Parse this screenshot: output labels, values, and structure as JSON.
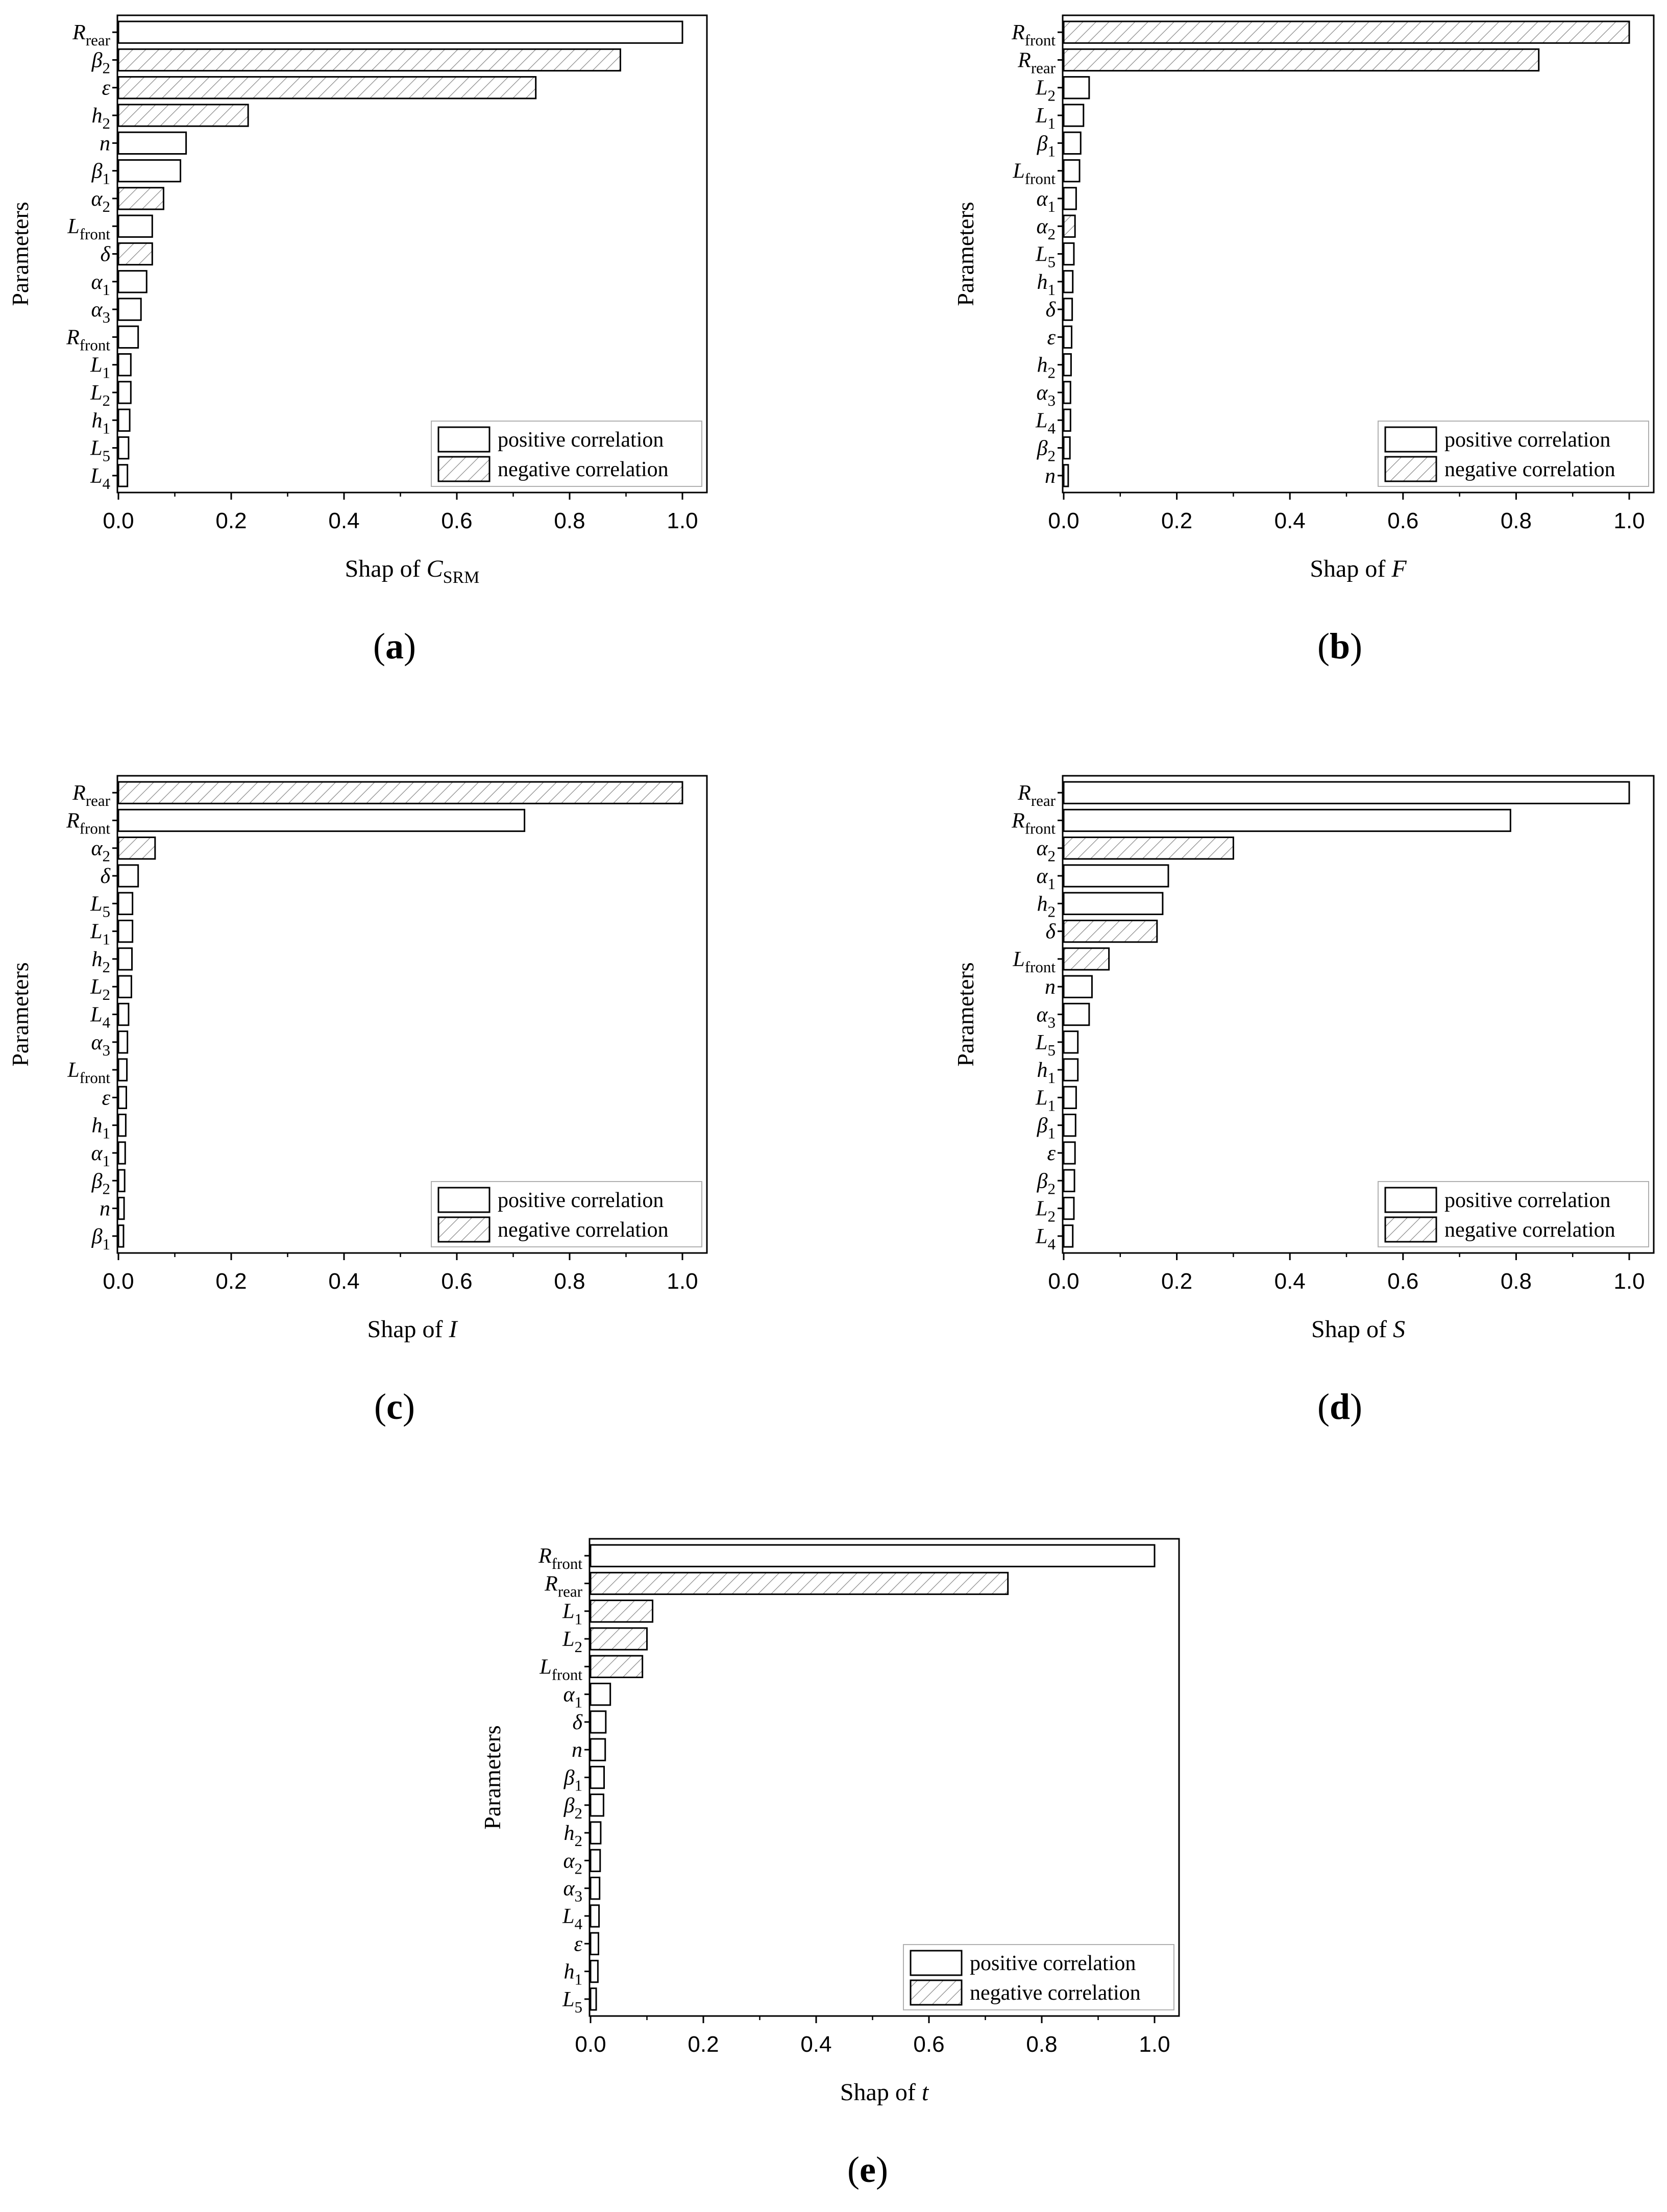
{
  "figure": {
    "legend": {
      "positive": "positive correlation",
      "negative": "negative correlation"
    },
    "yaxis_label": "Parameters",
    "xaxis_label_prefix": "Shap of ",
    "ticks": [
      "0.0",
      "0.2",
      "0.4",
      "0.6",
      "0.8",
      "1.0"
    ]
  },
  "chart_data": [
    {
      "type": "bar",
      "panel_label": "(a)",
      "xlabel_var": "C",
      "xlabel_sub": "SRM",
      "ylabel": "Parameters",
      "xlim": [
        0,
        1.0
      ],
      "legend_position": "bottom-right",
      "bars": [
        {
          "main": "R",
          "sub": "rear",
          "value": 1.0,
          "sign": "positive"
        },
        {
          "main": "β",
          "sub": "2",
          "value": 0.89,
          "sign": "negative"
        },
        {
          "main": "ε",
          "sub": "",
          "value": 0.74,
          "sign": "negative"
        },
        {
          "main": "h",
          "sub": "2",
          "value": 0.23,
          "sign": "negative"
        },
        {
          "main": "n",
          "sub": "",
          "value": 0.12,
          "sign": "positive"
        },
        {
          "main": "β",
          "sub": "1",
          "value": 0.11,
          "sign": "positive"
        },
        {
          "main": "α",
          "sub": "2",
          "value": 0.08,
          "sign": "negative"
        },
        {
          "main": "L",
          "sub": "front",
          "value": 0.06,
          "sign": "positive"
        },
        {
          "main": "δ",
          "sub": "",
          "value": 0.06,
          "sign": "negative"
        },
        {
          "main": "α",
          "sub": "1",
          "value": 0.05,
          "sign": "positive"
        },
        {
          "main": "α",
          "sub": "3",
          "value": 0.04,
          "sign": "positive"
        },
        {
          "main": "R",
          "sub": "front",
          "value": 0.035,
          "sign": "positive"
        },
        {
          "main": "L",
          "sub": "1",
          "value": 0.022,
          "sign": "positive"
        },
        {
          "main": "L",
          "sub": "2",
          "value": 0.022,
          "sign": "positive"
        },
        {
          "main": "h",
          "sub": "1",
          "value": 0.02,
          "sign": "positive"
        },
        {
          "main": "L",
          "sub": "5",
          "value": 0.018,
          "sign": "positive"
        },
        {
          "main": "L",
          "sub": "4",
          "value": 0.016,
          "sign": "positive"
        }
      ]
    },
    {
      "type": "bar",
      "panel_label": "(b)",
      "xlabel_var": "F",
      "xlabel_sub": "",
      "ylabel": "Parameters",
      "xlim": [
        0,
        1.0
      ],
      "legend_position": "bottom-right",
      "bars": [
        {
          "main": "R",
          "sub": "front",
          "value": 1.0,
          "sign": "negative"
        },
        {
          "main": "R",
          "sub": "rear",
          "value": 0.84,
          "sign": "negative"
        },
        {
          "main": "L",
          "sub": "2",
          "value": 0.045,
          "sign": "positive"
        },
        {
          "main": "L",
          "sub": "1",
          "value": 0.035,
          "sign": "positive"
        },
        {
          "main": "β",
          "sub": "1",
          "value": 0.03,
          "sign": "positive"
        },
        {
          "main": "L",
          "sub": "front",
          "value": 0.028,
          "sign": "positive"
        },
        {
          "main": "α",
          "sub": "1",
          "value": 0.022,
          "sign": "positive"
        },
        {
          "main": "α",
          "sub": "2",
          "value": 0.02,
          "sign": "negative"
        },
        {
          "main": "L",
          "sub": "5",
          "value": 0.018,
          "sign": "positive"
        },
        {
          "main": "h",
          "sub": "1",
          "value": 0.016,
          "sign": "positive"
        },
        {
          "main": "δ",
          "sub": "",
          "value": 0.015,
          "sign": "positive"
        },
        {
          "main": "ε",
          "sub": "",
          "value": 0.014,
          "sign": "positive"
        },
        {
          "main": "h",
          "sub": "2",
          "value": 0.013,
          "sign": "positive"
        },
        {
          "main": "α",
          "sub": "3",
          "value": 0.012,
          "sign": "positive"
        },
        {
          "main": "L",
          "sub": "4",
          "value": 0.012,
          "sign": "positive"
        },
        {
          "main": "β",
          "sub": "2",
          "value": 0.011,
          "sign": "positive"
        },
        {
          "main": "n",
          "sub": "",
          "value": 0.008,
          "sign": "positive"
        }
      ]
    },
    {
      "type": "bar",
      "panel_label": "(c)",
      "xlabel_var": "I",
      "xlabel_sub": "",
      "ylabel": "Parameters",
      "xlim": [
        0,
        1.0
      ],
      "legend_position": "bottom-right",
      "bars": [
        {
          "main": "R",
          "sub": "rear",
          "value": 1.0,
          "sign": "negative"
        },
        {
          "main": "R",
          "sub": "front",
          "value": 0.72,
          "sign": "positive"
        },
        {
          "main": "α",
          "sub": "2",
          "value": 0.065,
          "sign": "negative"
        },
        {
          "main": "δ",
          "sub": "",
          "value": 0.035,
          "sign": "positive"
        },
        {
          "main": "L",
          "sub": "5",
          "value": 0.025,
          "sign": "positive"
        },
        {
          "main": "L",
          "sub": "1",
          "value": 0.025,
          "sign": "positive"
        },
        {
          "main": "h",
          "sub": "2",
          "value": 0.024,
          "sign": "positive"
        },
        {
          "main": "L",
          "sub": "2",
          "value": 0.023,
          "sign": "positive"
        },
        {
          "main": "L",
          "sub": "4",
          "value": 0.018,
          "sign": "positive"
        },
        {
          "main": "α",
          "sub": "3",
          "value": 0.016,
          "sign": "positive"
        },
        {
          "main": "L",
          "sub": "front",
          "value": 0.015,
          "sign": "positive"
        },
        {
          "main": "ε",
          "sub": "",
          "value": 0.014,
          "sign": "positive"
        },
        {
          "main": "h",
          "sub": "1",
          "value": 0.013,
          "sign": "positive"
        },
        {
          "main": "α",
          "sub": "1",
          "value": 0.012,
          "sign": "positive"
        },
        {
          "main": "β",
          "sub": "2",
          "value": 0.011,
          "sign": "positive"
        },
        {
          "main": "n",
          "sub": "",
          "value": 0.01,
          "sign": "positive"
        },
        {
          "main": "β",
          "sub": "1",
          "value": 0.009,
          "sign": "positive"
        }
      ]
    },
    {
      "type": "bar",
      "panel_label": "(d)",
      "xlabel_var": "S",
      "xlabel_sub": "",
      "ylabel": "Parameters",
      "xlim": [
        0,
        1.0
      ],
      "legend_position": "bottom-right",
      "bars": [
        {
          "main": "R",
          "sub": "rear",
          "value": 1.0,
          "sign": "positive"
        },
        {
          "main": "R",
          "sub": "front",
          "value": 0.79,
          "sign": "positive"
        },
        {
          "main": "α",
          "sub": "2",
          "value": 0.3,
          "sign": "negative"
        },
        {
          "main": "α",
          "sub": "1",
          "value": 0.185,
          "sign": "positive"
        },
        {
          "main": "h",
          "sub": "2",
          "value": 0.175,
          "sign": "positive"
        },
        {
          "main": "δ",
          "sub": "",
          "value": 0.165,
          "sign": "negative"
        },
        {
          "main": "L",
          "sub": "front",
          "value": 0.08,
          "sign": "negative"
        },
        {
          "main": "n",
          "sub": "",
          "value": 0.05,
          "sign": "positive"
        },
        {
          "main": "α",
          "sub": "3",
          "value": 0.045,
          "sign": "positive"
        },
        {
          "main": "L",
          "sub": "5",
          "value": 0.025,
          "sign": "positive"
        },
        {
          "main": "h",
          "sub": "1",
          "value": 0.025,
          "sign": "positive"
        },
        {
          "main": "L",
          "sub": "1",
          "value": 0.022,
          "sign": "positive"
        },
        {
          "main": "β",
          "sub": "1",
          "value": 0.021,
          "sign": "positive"
        },
        {
          "main": "ε",
          "sub": "",
          "value": 0.02,
          "sign": "positive"
        },
        {
          "main": "β",
          "sub": "2",
          "value": 0.019,
          "sign": "positive"
        },
        {
          "main": "L",
          "sub": "2",
          "value": 0.018,
          "sign": "positive"
        },
        {
          "main": "L",
          "sub": "4",
          "value": 0.016,
          "sign": "positive"
        }
      ]
    },
    {
      "type": "bar",
      "panel_label": "(e)",
      "xlabel_var": "t",
      "xlabel_sub": "",
      "ylabel": "Parameters",
      "xlim": [
        0,
        1.0
      ],
      "legend_position": "bottom-right",
      "bars": [
        {
          "main": "R",
          "sub": "front",
          "value": 1.0,
          "sign": "positive"
        },
        {
          "main": "R",
          "sub": "rear",
          "value": 0.74,
          "sign": "negative"
        },
        {
          "main": "L",
          "sub": "1",
          "value": 0.11,
          "sign": "negative"
        },
        {
          "main": "L",
          "sub": "2",
          "value": 0.1,
          "sign": "negative"
        },
        {
          "main": "L",
          "sub": "front",
          "value": 0.092,
          "sign": "negative"
        },
        {
          "main": "α",
          "sub": "1",
          "value": 0.035,
          "sign": "positive"
        },
        {
          "main": "δ",
          "sub": "",
          "value": 0.027,
          "sign": "positive"
        },
        {
          "main": "n",
          "sub": "",
          "value": 0.026,
          "sign": "positive"
        },
        {
          "main": "β",
          "sub": "1",
          "value": 0.024,
          "sign": "positive"
        },
        {
          "main": "β",
          "sub": "2",
          "value": 0.023,
          "sign": "positive"
        },
        {
          "main": "h",
          "sub": "2",
          "value": 0.018,
          "sign": "positive"
        },
        {
          "main": "α",
          "sub": "2",
          "value": 0.017,
          "sign": "positive"
        },
        {
          "main": "α",
          "sub": "3",
          "value": 0.016,
          "sign": "positive"
        },
        {
          "main": "L",
          "sub": "4",
          "value": 0.015,
          "sign": "positive"
        },
        {
          "main": "ε",
          "sub": "",
          "value": 0.014,
          "sign": "positive"
        },
        {
          "main": "h",
          "sub": "1",
          "value": 0.013,
          "sign": "positive"
        },
        {
          "main": "L",
          "sub": "5",
          "value": 0.01,
          "sign": "positive"
        }
      ]
    }
  ]
}
